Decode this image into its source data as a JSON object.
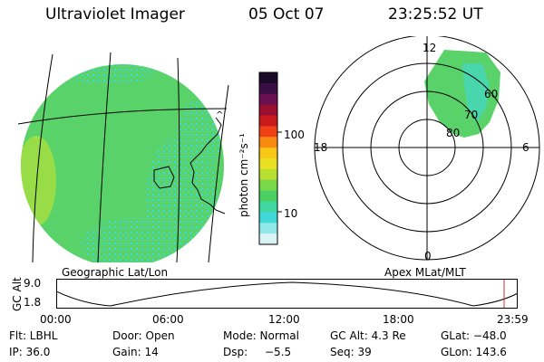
{
  "header": {
    "instrument": "Ultraviolet Imager",
    "date": "05 Oct 07",
    "time": "23:25:52 UT"
  },
  "colorbar": {
    "unit_label": "photon cm⁻²s⁻¹",
    "ticks": [
      "100",
      "10"
    ],
    "colors": [
      "#1a0a2a",
      "#3a0f45",
      "#6a1050",
      "#9a1030",
      "#c81a1a",
      "#f04018",
      "#f88a10",
      "#f8c818",
      "#e8e020",
      "#b8e030",
      "#78d848",
      "#48d060",
      "#40d8a0",
      "#40d8d8",
      "#90e8e8",
      "#d8f4f4"
    ]
  },
  "left_map": {
    "caption": "Geographic Lat/Lon",
    "fill_color": "#5ad26a",
    "speckle_color": "#40d8d8"
  },
  "polar_plot": {
    "caption": "Apex MLat/MLT",
    "mlt_labels": [
      "12",
      "18",
      "6",
      "0"
    ],
    "lat_labels": [
      "60",
      "70",
      "80"
    ]
  },
  "altitude_strip": {
    "ylabel": "GC Alt",
    "ymax": "9.0",
    "ymin": "1.8",
    "time_ticks": [
      "00:00",
      "06:00",
      "12:00",
      "18:00",
      "23:59"
    ],
    "current_marker_color": "#d03030"
  },
  "info": {
    "filter": "Flt: LBHL",
    "door": "Door: Open",
    "mode": "Mode: Normal",
    "gc_alt": "GC Alt: 4.3 Re",
    "glat": "GLat: −48.0",
    "ip": "IP: 36.0",
    "gain": "Gain: 14",
    "dsp_label": "Dsp:",
    "dsp_value": "−5.5",
    "seq": "Seq: 39",
    "glon": "GLon: 143.6"
  }
}
